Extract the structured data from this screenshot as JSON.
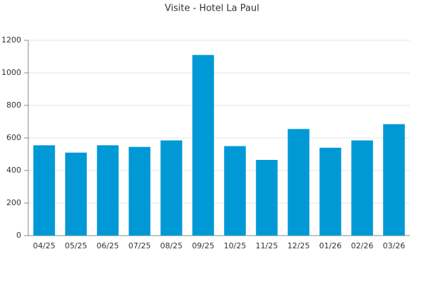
{
  "chart_data": {
    "type": "bar",
    "title": "Visite - Hotel La Paul",
    "categories": [
      "04/25",
      "05/25",
      "06/25",
      "07/25",
      "08/25",
      "09/25",
      "10/25",
      "11/25",
      "12/25",
      "01/26",
      "02/26",
      "03/26"
    ],
    "values": [
      555,
      510,
      555,
      545,
      585,
      1110,
      550,
      465,
      655,
      540,
      585,
      685
    ],
    "color": "#0099d6",
    "ylim": [
      0,
      1200
    ],
    "yticks": [
      0,
      200,
      400,
      600,
      800,
      1000,
      1200
    ],
    "grid": true
  }
}
